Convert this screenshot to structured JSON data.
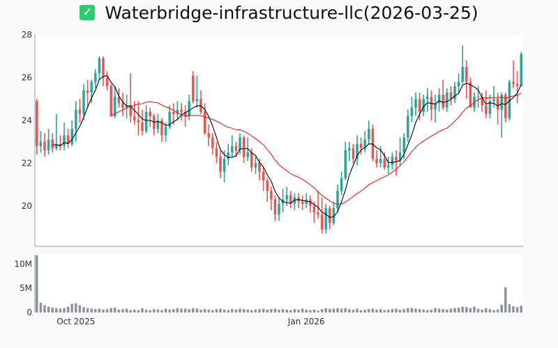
{
  "title": "Waterbridge-infrastructure-llc(2026-03-25)",
  "title_icon": "check-box-icon",
  "colors": {
    "up": "#26a69a",
    "down": "#ef5350",
    "ma_short": "#000000",
    "ma_long": "#ff0000",
    "volume": "#8a93a0"
  },
  "chart_data": {
    "type": "candlestick",
    "title": "Waterbridge-infrastructure-llc(2026-03-25)",
    "ylim": [
      18.11,
      28
    ],
    "yticks": [
      20,
      22,
      24,
      26,
      28
    ],
    "xticks": [
      {
        "index": 10,
        "label": "Oct 2025"
      },
      {
        "index": 69,
        "label": "Jan 2026"
      }
    ],
    "ma_windows": {
      "short": 5,
      "long": 20
    },
    "ohlc": [
      [
        24.9,
        25.0,
        22.4,
        22.8
      ],
      [
        22.8,
        23.5,
        22.5,
        23.0
      ],
      [
        23.0,
        23.4,
        22.3,
        22.6
      ],
      [
        22.6,
        23.6,
        22.4,
        23.1
      ],
      [
        23.1,
        23.4,
        22.5,
        22.7
      ],
      [
        22.7,
        24.3,
        22.6,
        22.9
      ],
      [
        22.9,
        23.3,
        22.6,
        22.8
      ],
      [
        22.8,
        23.9,
        22.6,
        23.3
      ],
      [
        23.3,
        23.6,
        22.7,
        22.9
      ],
      [
        22.9,
        24.0,
        22.8,
        23.6
      ],
      [
        23.6,
        24.9,
        23.0,
        24.5
      ],
      [
        24.5,
        25.0,
        23.9,
        24.3
      ],
      [
        24.3,
        25.7,
        24.0,
        25.4
      ],
      [
        25.4,
        25.9,
        24.6,
        25.3
      ],
      [
        25.3,
        25.9,
        24.8,
        25.8
      ],
      [
        25.8,
        26.4,
        25.5,
        26.2
      ],
      [
        26.2,
        27.0,
        25.9,
        26.9
      ],
      [
        26.9,
        27.0,
        25.6,
        26.0
      ],
      [
        26.0,
        26.3,
        25.4,
        25.6
      ],
      [
        25.6,
        25.7,
        24.2,
        24.2
      ],
      [
        24.2,
        25.6,
        24.1,
        25.1
      ],
      [
        25.1,
        25.5,
        24.6,
        24.8
      ],
      [
        24.8,
        25.3,
        24.2,
        24.6
      ],
      [
        24.6,
        25.2,
        24.1,
        24.7
      ],
      [
        24.7,
        26.2,
        23.9,
        24.2
      ],
      [
        24.2,
        24.9,
        23.8,
        24.0
      ],
      [
        24.0,
        24.9,
        23.3,
        23.9
      ],
      [
        23.9,
        24.5,
        23.3,
        23.5
      ],
      [
        23.5,
        24.7,
        23.4,
        24.4
      ],
      [
        24.4,
        24.6,
        23.7,
        24.2
      ],
      [
        24.2,
        24.3,
        23.3,
        23.6
      ],
      [
        23.6,
        24.3,
        23.4,
        24.0
      ],
      [
        24.0,
        24.1,
        23.0,
        23.3
      ],
      [
        23.3,
        23.9,
        23.0,
        23.7
      ],
      [
        23.7,
        24.7,
        23.6,
        24.4
      ],
      [
        24.4,
        24.8,
        23.8,
        24.3
      ],
      [
        24.3,
        24.9,
        24.0,
        24.5
      ],
      [
        24.5,
        24.8,
        24.0,
        24.4
      ],
      [
        24.4,
        24.7,
        23.7,
        24.2
      ],
      [
        24.2,
        25.2,
        24.0,
        24.9
      ],
      [
        26.1,
        26.3,
        24.8,
        24.9
      ],
      [
        24.9,
        26.1,
        24.6,
        25.0
      ],
      [
        25.0,
        25.4,
        24.3,
        24.4
      ],
      [
        24.4,
        24.8,
        23.3,
        23.4
      ],
      [
        23.4,
        23.8,
        22.8,
        23.2
      ],
      [
        23.2,
        23.4,
        22.4,
        22.7
      ],
      [
        22.7,
        23.0,
        22.0,
        22.3
      ],
      [
        22.3,
        22.6,
        21.3,
        21.6
      ],
      [
        21.6,
        22.6,
        21.1,
        22.2
      ],
      [
        22.2,
        22.9,
        21.9,
        22.5
      ],
      [
        22.5,
        23.3,
        22.3,
        22.8
      ],
      [
        22.8,
        23.0,
        22.3,
        22.6
      ],
      [
        22.6,
        23.4,
        22.4,
        23.2
      ],
      [
        23.2,
        23.3,
        22.0,
        22.3
      ],
      [
        22.3,
        23.2,
        22.1,
        22.5
      ],
      [
        22.5,
        22.7,
        21.6,
        21.8
      ],
      [
        21.8,
        22.3,
        21.5,
        22.0
      ],
      [
        22.0,
        22.2,
        21.2,
        21.6
      ],
      [
        21.6,
        21.8,
        20.7,
        21.2
      ],
      [
        21.2,
        21.3,
        20.2,
        20.7
      ],
      [
        20.7,
        20.9,
        19.8,
        20.3
      ],
      [
        20.3,
        20.5,
        19.3,
        19.6
      ],
      [
        19.6,
        20.4,
        19.3,
        20.1
      ],
      [
        20.1,
        20.8,
        19.7,
        20.3
      ],
      [
        20.3,
        20.9,
        20.0,
        20.5
      ],
      [
        20.5,
        20.7,
        19.9,
        20.1
      ],
      [
        20.1,
        20.6,
        19.8,
        20.4
      ],
      [
        20.4,
        20.6,
        19.9,
        20.2
      ],
      [
        20.2,
        20.5,
        19.8,
        20.1
      ],
      [
        20.1,
        20.6,
        19.9,
        20.3
      ],
      [
        20.3,
        20.5,
        19.7,
        20.0
      ],
      [
        20.0,
        20.2,
        19.2,
        19.7
      ],
      [
        19.7,
        20.7,
        19.4,
        19.6
      ],
      [
        19.6,
        20.4,
        18.7,
        18.9
      ],
      [
        18.9,
        20.1,
        18.7,
        19.9
      ],
      [
        19.9,
        20.0,
        18.9,
        19.2
      ],
      [
        19.2,
        20.2,
        19.1,
        19.9
      ],
      [
        19.9,
        21.0,
        19.7,
        20.7
      ],
      [
        20.7,
        21.6,
        20.5,
        21.3
      ],
      [
        21.3,
        23.0,
        21.2,
        22.6
      ],
      [
        22.6,
        23.0,
        22.1,
        22.7
      ],
      [
        22.7,
        22.9,
        22.0,
        22.2
      ],
      [
        22.2,
        23.3,
        21.9,
        22.9
      ],
      [
        22.9,
        23.2,
        22.4,
        22.7
      ],
      [
        22.7,
        23.5,
        22.5,
        23.1
      ],
      [
        23.1,
        24.0,
        22.9,
        23.6
      ],
      [
        23.6,
        23.8,
        22.1,
        22.2
      ],
      [
        22.2,
        22.6,
        21.8,
        22.0
      ],
      [
        22.0,
        22.8,
        21.8,
        22.2
      ],
      [
        22.2,
        22.5,
        21.7,
        21.8
      ],
      [
        21.8,
        22.3,
        21.5,
        21.9
      ],
      [
        21.9,
        22.5,
        21.7,
        22.3
      ],
      [
        22.3,
        22.6,
        21.4,
        22.1
      ],
      [
        22.1,
        23.2,
        21.9,
        22.5
      ],
      [
        22.5,
        23.4,
        22.2,
        23.2
      ],
      [
        23.2,
        24.5,
        23.0,
        24.2
      ],
      [
        24.2,
        25.1,
        23.9,
        24.6
      ],
      [
        24.6,
        25.3,
        24.2,
        25.0
      ],
      [
        25.0,
        25.3,
        24.0,
        24.4
      ],
      [
        24.4,
        25.2,
        24.2,
        25.0
      ],
      [
        25.0,
        25.5,
        24.4,
        25.1
      ],
      [
        25.1,
        25.4,
        24.0,
        24.5
      ],
      [
        24.5,
        25.2,
        23.9,
        24.8
      ],
      [
        24.8,
        25.5,
        24.4,
        25.2
      ],
      [
        25.2,
        25.9,
        24.5,
        24.6
      ],
      [
        24.6,
        25.5,
        24.4,
        25.3
      ],
      [
        25.3,
        25.6,
        24.7,
        25.0
      ],
      [
        25.0,
        25.8,
        24.8,
        25.6
      ],
      [
        25.6,
        26.2,
        25.3,
        25.8
      ],
      [
        25.8,
        27.5,
        25.7,
        26.5
      ],
      [
        26.5,
        26.8,
        25.0,
        25.8
      ],
      [
        25.8,
        26.0,
        24.6,
        24.6
      ],
      [
        24.6,
        25.3,
        24.4,
        25.1
      ],
      [
        25.1,
        25.6,
        24.6,
        25.1
      ],
      [
        25.1,
        25.3,
        24.4,
        24.7
      ],
      [
        24.7,
        25.4,
        24.1,
        24.3
      ],
      [
        24.3,
        25.2,
        24.1,
        24.9
      ],
      [
        24.9,
        25.6,
        24.6,
        25.0
      ],
      [
        25.0,
        25.3,
        23.8,
        24.5
      ],
      [
        24.5,
        25.3,
        23.2,
        25.2
      ],
      [
        25.2,
        25.3,
        23.9,
        24.1
      ],
      [
        24.1,
        25.9,
        24.0,
        25.8
      ],
      [
        25.8,
        26.8,
        25.5,
        25.7
      ],
      [
        25.7,
        26.3,
        24.8,
        25.6
      ],
      [
        25.6,
        27.2,
        25.6,
        27.1
      ]
    ],
    "volume_ylim": [
      0,
      11.9
    ],
    "volume_yticks": [
      {
        "value": 0,
        "label": "0"
      },
      {
        "value": 5,
        "label": "5M"
      },
      {
        "value": 10,
        "label": "10M"
      }
    ],
    "volume_millions": [
      11.8,
      2.0,
      1.5,
      1.2,
      1.0,
      0.9,
      0.8,
      0.9,
      1.2,
      1.8,
      1.9,
      1.5,
      1.1,
      0.9,
      0.8,
      0.7,
      0.8,
      0.6,
      0.7,
      0.9,
      1.0,
      0.6,
      0.7,
      0.8,
      0.5,
      0.6,
      0.5,
      0.9,
      0.6,
      0.5,
      0.7,
      0.6,
      0.5,
      0.8,
      0.6,
      0.7,
      0.9,
      0.8,
      0.8,
      0.7,
      0.9,
      0.8,
      0.6,
      0.7,
      0.6,
      0.5,
      0.7,
      0.8,
      0.6,
      0.5,
      0.7,
      0.6,
      0.8,
      0.7,
      0.6,
      0.5,
      0.6,
      0.7,
      0.8,
      0.6,
      0.7,
      0.8,
      0.6,
      0.7,
      0.6,
      0.5,
      0.7,
      0.6,
      0.8,
      0.6,
      0.5,
      0.6,
      0.4,
      0.7,
      0.9,
      0.8,
      0.8,
      0.9,
      0.8,
      0.9,
      0.7,
      0.6,
      0.8,
      0.5,
      0.6,
      0.7,
      0.8,
      0.6,
      0.7,
      0.5,
      0.6,
      0.7,
      0.8,
      0.6,
      0.7,
      0.9,
      0.9,
      0.8,
      0.7,
      0.6,
      0.5,
      0.6,
      0.9,
      0.8,
      0.7,
      0.6,
      0.8,
      0.9,
      1.0,
      1.2,
      1.1,
      0.9,
      1.2,
      0.8,
      0.6,
      0.9,
      0.7,
      0.5,
      0.6,
      1.6,
      5.2,
      1.7,
      1.3,
      1.1,
      1.4
    ]
  }
}
